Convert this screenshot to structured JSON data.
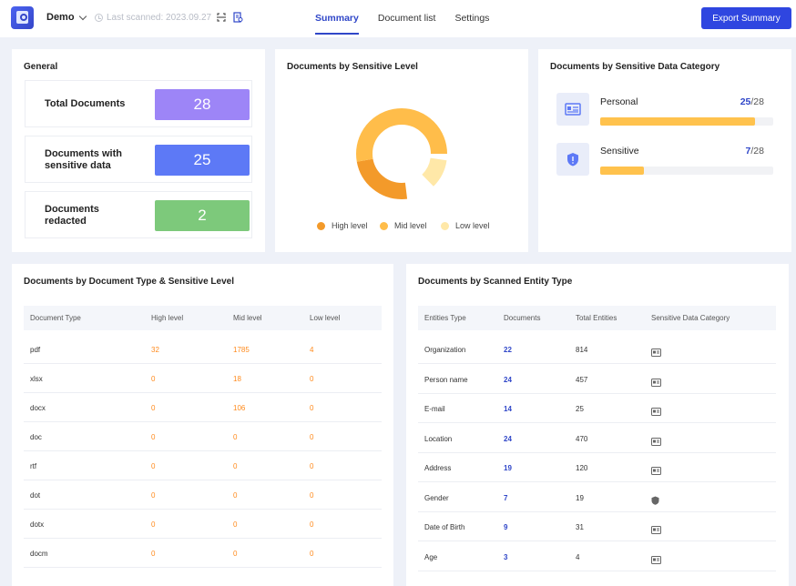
{
  "header": {
    "project": "Demo",
    "last_scanned": "Last scanned: 2023.09.27",
    "tabs": [
      {
        "label": "Summary",
        "active": true
      },
      {
        "label": "Document list",
        "active": false
      },
      {
        "label": "Settings",
        "active": false
      }
    ],
    "export_label": "Export Summary"
  },
  "general": {
    "title": "General",
    "rows": [
      {
        "label_lines": [
          "Total Documents"
        ],
        "value": "28",
        "color": "#9d85f7"
      },
      {
        "label_lines": [
          "Documents with",
          "sensitive data"
        ],
        "value": "25",
        "color": "#5d79f6"
      },
      {
        "label_lines": [
          "Documents",
          "redacted"
        ],
        "value": "2",
        "color": "#7dc97b"
      }
    ]
  },
  "sensitive_level": {
    "title": "Documents by Sensitive Level",
    "chart_data": {
      "type": "pie",
      "donut": true,
      "categories": [
        "High level",
        "Mid level",
        "Low level"
      ],
      "values": [
        7,
        19,
        3
      ],
      "colors": [
        "#f39a2a",
        "#ffbd4a",
        "#ffe8a8"
      ],
      "legend": "bottom"
    }
  },
  "category": {
    "title": "Documents by Sensitive Data Category",
    "items": [
      {
        "name": "Personal",
        "count": "25",
        "total": "/28",
        "fraction": 0.893,
        "icon": "id-card-icon"
      },
      {
        "name": "Sensitive",
        "count": "7",
        "total": "/28",
        "fraction": 0.25,
        "icon": "shield-icon"
      }
    ]
  },
  "doc_type": {
    "title": "Documents by Document Type & Sensitive Level",
    "columns": [
      "Document Type",
      "High level",
      "Mid level",
      "Low level"
    ],
    "rows": [
      [
        "pdf",
        "32",
        "1785",
        "4"
      ],
      [
        "xlsx",
        "0",
        "18",
        "0"
      ],
      [
        "docx",
        "0",
        "106",
        "0"
      ],
      [
        "doc",
        "0",
        "0",
        "0"
      ],
      [
        "rtf",
        "0",
        "0",
        "0"
      ],
      [
        "dot",
        "0",
        "0",
        "0"
      ],
      [
        "dotx",
        "0",
        "0",
        "0"
      ],
      [
        "docm",
        "0",
        "0",
        "0"
      ]
    ]
  },
  "entity": {
    "title": "Documents by Scanned Entity Type",
    "columns": [
      "Entities Type",
      "Documents",
      "Total Entities",
      "Sensitive Data Category"
    ],
    "rows": [
      {
        "type": "Organization",
        "documents": "22",
        "total": "814",
        "icon": "id-card-icon"
      },
      {
        "type": "Person name",
        "documents": "24",
        "total": "457",
        "icon": "id-card-icon"
      },
      {
        "type": "E-mail",
        "documents": "14",
        "total": "25",
        "icon": "id-card-icon"
      },
      {
        "type": "Location",
        "documents": "24",
        "total": "470",
        "icon": "id-card-icon"
      },
      {
        "type": "Address",
        "documents": "19",
        "total": "120",
        "icon": "id-card-icon"
      },
      {
        "type": "Gender",
        "documents": "7",
        "total": "19",
        "icon": "shield-icon"
      },
      {
        "type": "Date of Birth",
        "documents": "9",
        "total": "31",
        "icon": "id-card-icon"
      },
      {
        "type": "Age",
        "documents": "3",
        "total": "4",
        "icon": "id-card-icon"
      }
    ]
  }
}
